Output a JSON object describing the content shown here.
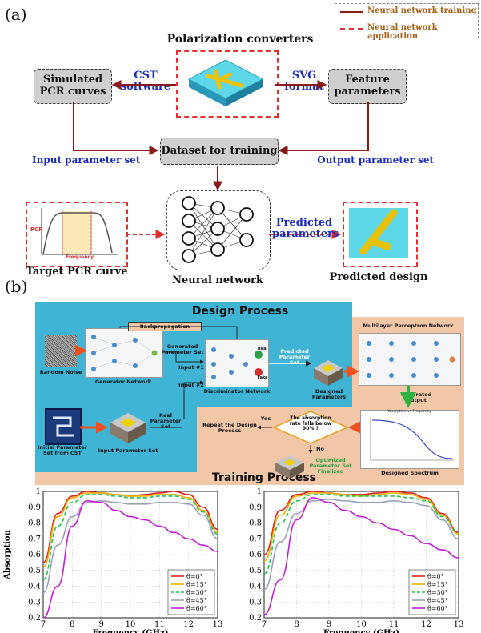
{
  "panel_a": {
    "letter": "(a)",
    "legend": {
      "train": "Neural network training",
      "apply": "Neural network application"
    },
    "title": "Polarization converters",
    "simulated": "Simulated PCR curves",
    "cst": "CST software",
    "svg": "SVG format",
    "feature": "Feature parameters",
    "dataset": "Dataset for training",
    "input_set": "Input parameter set",
    "output_set": "Output parameter set",
    "pcr_axis": "PCR",
    "freq_axis": "Frequency",
    "target": "Target PCR curve",
    "nn": "Neural network",
    "predicted_params": "Predicted parameters",
    "predicted_design": "Predicted design"
  },
  "panel_b": {
    "letter": "(b)",
    "design_process": "Design Process",
    "training_process": "Training Process",
    "backprop": "Backpropagation",
    "random_noise": "Random Noise",
    "generator": "Generator Network",
    "generated_set": "Generated Parameter Set",
    "input1": "Input #1",
    "input2": "Input #2",
    "discriminator": "Discriminator Network",
    "real": "Real",
    "fake": "Fake",
    "predicted_set": "Predicted Parameter Set",
    "designed_params": "Designed Parameters",
    "mlp": "Multilayer Perceptron Network",
    "generated_output": "Generated Output",
    "initial_set": "Initial Parameter Set from CST",
    "input_param_set": "Input Parameter Set",
    "real_set": "Real Parameter Set",
    "repeat": "Repeat the Design Process",
    "yes": "Yes",
    "no": "No",
    "decision": "The absorption rate falls below 90% ?",
    "optimized": "Optimized Parameter Set Finalized",
    "spectrum_title": "Absorption vs Frequency",
    "designed_spectrum": "Designed Spectrum"
  },
  "chart_data": [
    {
      "type": "line",
      "xlabel": "Frequency (GHz)",
      "ylabel": "Absorption",
      "xlim": [
        7,
        13
      ],
      "ylim": [
        0.2,
        1.0
      ],
      "xticks": [
        7,
        8,
        9,
        10,
        11,
        12,
        13
      ],
      "yticks": [
        0.2,
        0.3,
        0.4,
        0.5,
        0.6,
        0.7,
        0.8,
        0.9,
        1
      ],
      "grid": true,
      "legend_position": "bottom-right",
      "x": [
        7,
        7.5,
        8,
        8.5,
        9,
        9.5,
        10,
        10.5,
        11,
        11.5,
        12,
        12.5,
        13
      ],
      "series": [
        {
          "name": "θ=0°",
          "color": "#e02020",
          "dash": "solid",
          "values": [
            0.55,
            0.86,
            0.97,
            1.0,
            0.99,
            0.98,
            0.97,
            0.98,
            0.99,
            1.0,
            0.98,
            0.9,
            0.76
          ]
        },
        {
          "name": "θ=15°",
          "color": "#e8b000",
          "dash": "solid",
          "values": [
            0.52,
            0.84,
            0.96,
            0.99,
            0.99,
            0.98,
            0.97,
            0.97,
            0.98,
            0.98,
            0.96,
            0.88,
            0.74
          ]
        },
        {
          "name": "θ=30°",
          "color": "#22c055",
          "dash": "dashed",
          "values": [
            0.44,
            0.78,
            0.93,
            0.98,
            0.98,
            0.97,
            0.96,
            0.96,
            0.97,
            0.97,
            0.95,
            0.87,
            0.73
          ]
        },
        {
          "name": "θ=45°",
          "color": "#9aa0b8",
          "dash": "solid",
          "values": [
            0.36,
            0.66,
            0.84,
            0.93,
            0.94,
            0.93,
            0.92,
            0.92,
            0.93,
            0.93,
            0.92,
            0.85,
            0.7
          ]
        },
        {
          "name": "θ=60°",
          "color": "#c020d0",
          "dash": "solid",
          "values": [
            0.2,
            0.4,
            0.78,
            0.94,
            0.93,
            0.88,
            0.84,
            0.82,
            0.78,
            0.74,
            0.7,
            0.66,
            0.62
          ]
        }
      ]
    },
    {
      "type": "line",
      "xlabel": "Frequency (GHz)",
      "ylabel": "",
      "xlim": [
        7,
        13
      ],
      "ylim": [
        0.2,
        1.0
      ],
      "xticks": [
        7,
        8,
        9,
        10,
        11,
        12,
        13
      ],
      "yticks": [
        0.2,
        0.3,
        0.4,
        0.5,
        0.6,
        0.7,
        0.8,
        0.9,
        1
      ],
      "grid": true,
      "legend_position": "bottom-right",
      "x": [
        7,
        7.5,
        8,
        8.5,
        9,
        9.5,
        10,
        10.5,
        11,
        11.5,
        12,
        12.5,
        13
      ],
      "series": [
        {
          "name": "θ=0°",
          "color": "#e02020",
          "dash": "solid",
          "values": [
            0.6,
            0.88,
            0.98,
            1.0,
            0.99,
            0.98,
            0.98,
            0.99,
            1.0,
            0.99,
            0.96,
            0.86,
            0.74
          ]
        },
        {
          "name": "θ=15°",
          "color": "#e8b000",
          "dash": "solid",
          "values": [
            0.56,
            0.85,
            0.97,
            0.99,
            0.99,
            0.98,
            0.97,
            0.98,
            0.99,
            0.98,
            0.95,
            0.85,
            0.73
          ]
        },
        {
          "name": "θ=30°",
          "color": "#22c055",
          "dash": "dashed",
          "values": [
            0.48,
            0.8,
            0.94,
            0.98,
            0.98,
            0.97,
            0.97,
            0.97,
            0.97,
            0.96,
            0.94,
            0.84,
            0.74
          ]
        },
        {
          "name": "θ=45°",
          "color": "#9aa0b8",
          "dash": "solid",
          "values": [
            0.38,
            0.68,
            0.86,
            0.94,
            0.95,
            0.94,
            0.93,
            0.93,
            0.94,
            0.93,
            0.91,
            0.82,
            0.7
          ]
        },
        {
          "name": "θ=60°",
          "color": "#c020d0",
          "dash": "solid",
          "values": [
            0.22,
            0.44,
            0.82,
            0.96,
            0.93,
            0.88,
            0.84,
            0.8,
            0.76,
            0.72,
            0.67,
            0.63,
            0.58
          ]
        }
      ]
    }
  ]
}
